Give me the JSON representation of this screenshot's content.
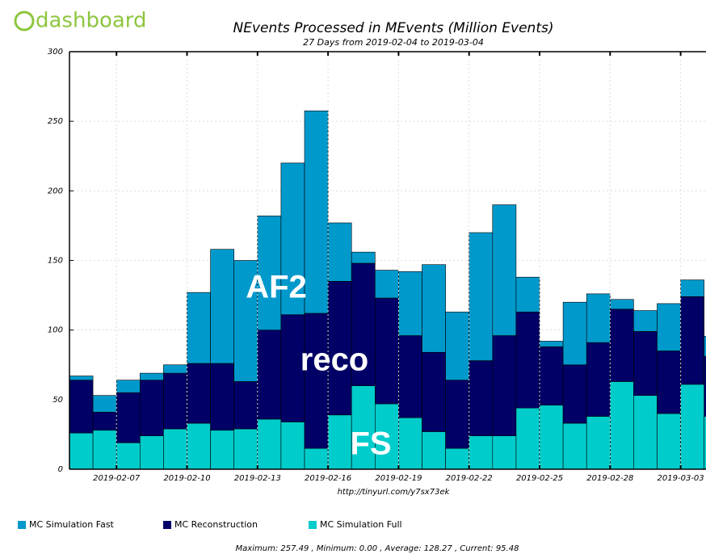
{
  "logo": "dashboard",
  "chart_data": {
    "type": "stacked_bar",
    "title": "NEvents Processed in MEvents (Million Events)",
    "subtitle": "27 Days from 2019-02-04 to 2019-03-04",
    "x_label": "http://tinyurl.com/y7sx73ek",
    "categories": [
      null,
      null,
      "2019-02-07",
      null,
      null,
      "2019-02-10",
      null,
      null,
      "2019-02-13",
      null,
      null,
      "2019-02-16",
      null,
      null,
      "2019-02-19",
      null,
      null,
      "2019-02-22",
      null,
      null,
      "2019-02-25",
      null,
      null,
      "2019-02-28",
      null,
      null,
      "2019-03-03",
      null
    ],
    "series": [
      {
        "name": "MC Simulation Full",
        "color": "#00cccc",
        "values": [
          26,
          28,
          19,
          24,
          29,
          33,
          28,
          29,
          36,
          34,
          15,
          39,
          60,
          47,
          37,
          27,
          15,
          24,
          24,
          44,
          46,
          33,
          38,
          63,
          53,
          40,
          61,
          38
        ]
      },
      {
        "name": "MC Reconstruction",
        "color": "#000066",
        "values": [
          38,
          13,
          36,
          40,
          40,
          43,
          48,
          34,
          64,
          77,
          97,
          96,
          88,
          76,
          59,
          57,
          49,
          54,
          72,
          69,
          42,
          42,
          53,
          52,
          46,
          45,
          63,
          43
        ]
      },
      {
        "name": "MC Simulation Fast",
        "color": "#0099cc",
        "values": [
          3,
          12,
          9,
          5,
          6,
          51,
          82,
          87,
          82,
          109,
          145.5,
          42,
          8,
          20,
          46,
          63,
          49,
          92,
          94,
          25,
          4,
          45,
          35,
          7,
          15,
          34,
          12,
          14.5
        ]
      }
    ],
    "legend_order": [
      "MC Simulation Fast",
      "MC Reconstruction",
      "MC Simulation Full"
    ],
    "ylim": [
      0,
      300
    ],
    "yticks": [
      0,
      50,
      100,
      150,
      200,
      250,
      300
    ],
    "grid": true,
    "annotations": [
      "AF2",
      "reco",
      "FS"
    ],
    "footer": "Maximum: 257.49 , Minimum: 0.00 , Average: 128.27 , Current: 95.48"
  }
}
